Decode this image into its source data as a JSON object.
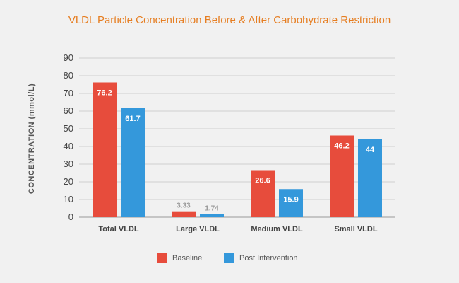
{
  "chart_data": {
    "type": "bar",
    "title": "VLDL Particle Concentration Before & After Carbohydrate Restriction",
    "ylabel": "CONCENTRATION (mmol/L)",
    "xlabel": "",
    "ylim": [
      0,
      90
    ],
    "yticks": [
      0,
      10,
      20,
      30,
      40,
      50,
      60,
      70,
      80,
      90
    ],
    "grid": true,
    "legend_position": "bottom-center",
    "categories": [
      "Total VLDL",
      "Large VLDL",
      "Medium VLDL",
      "Small VLDL"
    ],
    "series": [
      {
        "name": "Baseline",
        "color": "#e74c3c",
        "values": [
          76.2,
          3.33,
          26.6,
          46.2
        ],
        "labels": [
          "76.2",
          "3.33",
          "26.6",
          "46.2"
        ]
      },
      {
        "name": "Post Intervention",
        "color": "#3498db",
        "values": [
          61.7,
          1.74,
          15.9,
          44
        ],
        "labels": [
          "61.7",
          "1.74",
          "15.9",
          "44"
        ]
      }
    ]
  }
}
